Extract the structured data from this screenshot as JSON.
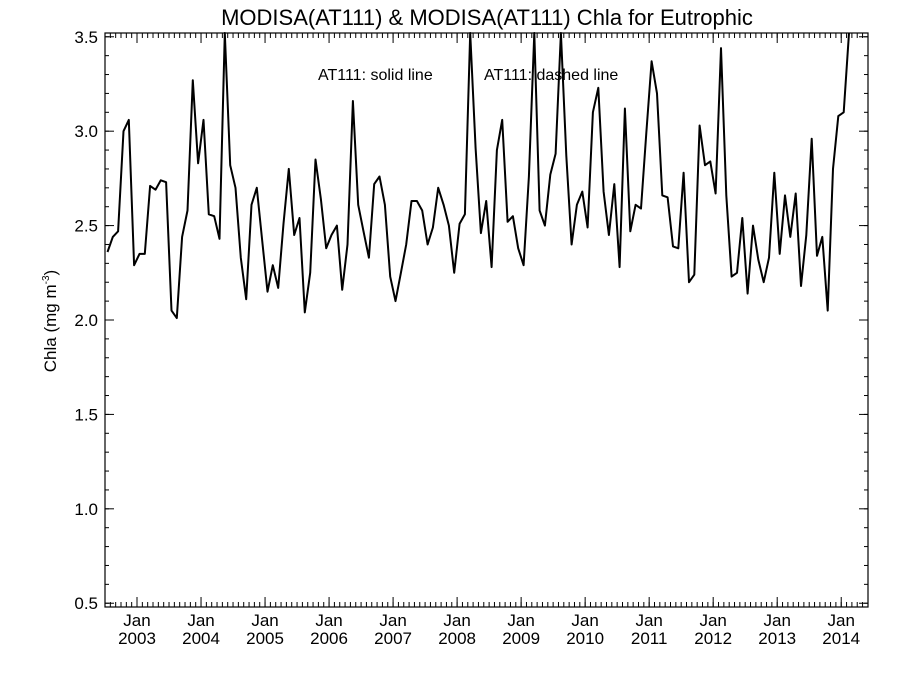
{
  "chart_data": {
    "type": "line",
    "title": "MODISA(AT111) & MODISA(AT111)  Chla for Eutrophic",
    "ylabel": "Chla (mg m",
    "ylabel_sup": "-3",
    "ylabel_close": ")",
    "ylim": [
      0.48,
      3.52
    ],
    "xlim": [
      "2002-07-01",
      "2014-05-31"
    ],
    "yticks": [
      0.5,
      1.0,
      1.5,
      2.0,
      2.5,
      3.0,
      3.5
    ],
    "ytick_labels": [
      "0.5",
      "1.0",
      "1.5",
      "2.0",
      "2.5",
      "3.0",
      "3.5"
    ],
    "xtick_month_label": "Jan",
    "xtick_years": [
      "2003",
      "2004",
      "2005",
      "2006",
      "2007",
      "2008",
      "2009",
      "2010",
      "2011",
      "2012",
      "2013",
      "2014"
    ],
    "annotation_solid": "AT111: solid line",
    "annotation_dashed": "AT111: dashed line",
    "grid": false,
    "series": [
      {
        "style": "solid",
        "color": "#000000",
        "start": "2002-07",
        "values": [
          2.36,
          2.44,
          2.47,
          3.0,
          3.06,
          2.29,
          2.35,
          2.35,
          2.71,
          2.69,
          2.74,
          2.73,
          2.05,
          2.01,
          2.44,
          2.58,
          3.27,
          2.83,
          3.06,
          2.56,
          2.55,
          2.43,
          3.52,
          2.82,
          2.7,
          2.33,
          2.11,
          2.61,
          2.7,
          2.42,
          2.15,
          2.29,
          2.17,
          2.51,
          2.8,
          2.45,
          2.54,
          2.04,
          2.25,
          2.85,
          2.64,
          2.38,
          2.45,
          2.5,
          2.16,
          2.4,
          3.16,
          2.61,
          2.47,
          2.33,
          2.72,
          2.76,
          2.61,
          2.23,
          2.1,
          2.25,
          2.4,
          2.63,
          2.63,
          2.58,
          2.4,
          2.49,
          2.7,
          2.61,
          2.5,
          2.25,
          2.51,
          2.56,
          3.52,
          2.91,
          2.46,
          2.63,
          2.28,
          2.9,
          3.06,
          2.52,
          2.55,
          2.38,
          2.29,
          2.76,
          3.52,
          2.58,
          2.5,
          2.77,
          2.88,
          3.52,
          2.87,
          2.4,
          2.61,
          2.68,
          2.49,
          3.1,
          3.23,
          2.68,
          2.45,
          2.72,
          2.28,
          3.12,
          2.47,
          2.61,
          2.59,
          2.99,
          3.37,
          3.2,
          2.66,
          2.65,
          2.39,
          2.38,
          2.78,
          2.2,
          2.24,
          3.03,
          2.82,
          2.84,
          2.67,
          3.44,
          2.66,
          2.23,
          2.25,
          2.54,
          2.14,
          2.5,
          2.32,
          2.2,
          2.33,
          2.78,
          2.35,
          2.66,
          2.44,
          2.67,
          2.18,
          2.45,
          2.96,
          2.34,
          2.44,
          2.05,
          2.8,
          3.08,
          3.1,
          3.52
        ]
      }
    ]
  }
}
